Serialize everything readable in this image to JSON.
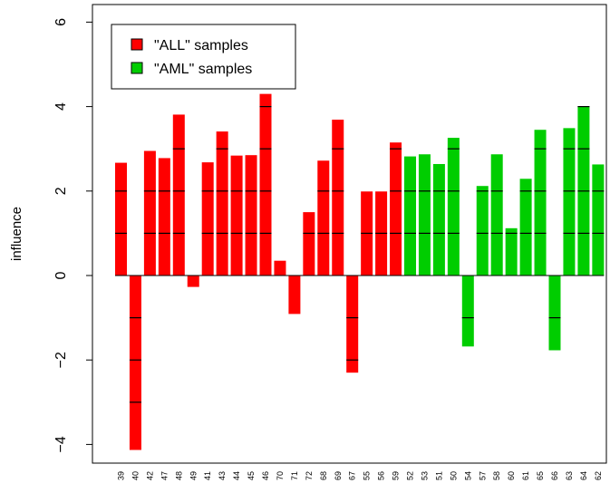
{
  "chart_data": {
    "type": "bar",
    "ylabel": "influence",
    "xlabel": "",
    "title": "",
    "ylim": [
      -4.3,
      6.3
    ],
    "yticks": [
      -4,
      -2,
      0,
      2,
      4,
      6
    ],
    "ytick_labels": [
      "−4",
      "−2",
      "0",
      "2",
      "4",
      "6"
    ],
    "categories": [
      "39",
      "40",
      "42",
      "47",
      "48",
      "49",
      "41",
      "43",
      "44",
      "45",
      "46",
      "70",
      "71",
      "72",
      "68",
      "69",
      "67",
      "55",
      "56",
      "59",
      "52",
      "53",
      "51",
      "50",
      "54",
      "57",
      "58",
      "60",
      "61",
      "65",
      "66",
      "63",
      "64",
      "62"
    ],
    "values": [
      2.67,
      -4.13,
      2.95,
      2.78,
      3.81,
      -0.27,
      2.68,
      3.41,
      2.84,
      2.85,
      4.3,
      0.35,
      -0.91,
      1.5,
      2.72,
      3.69,
      -2.3,
      1.99,
      1.99,
      3.15,
      2.82,
      2.87,
      2.64,
      3.26,
      -1.68,
      2.12,
      2.87,
      1.12,
      2.29,
      3.45,
      -1.77,
      3.49,
      4.01,
      2.63
    ],
    "groups": [
      "ALL",
      "ALL",
      "ALL",
      "ALL",
      "ALL",
      "ALL",
      "ALL",
      "ALL",
      "ALL",
      "ALL",
      "ALL",
      "ALL",
      "ALL",
      "ALL",
      "ALL",
      "ALL",
      "ALL",
      "ALL",
      "ALL",
      "ALL",
      "AML",
      "AML",
      "AML",
      "AML",
      "AML",
      "AML",
      "AML",
      "AML",
      "AML",
      "AML",
      "AML",
      "AML",
      "AML",
      "AML"
    ],
    "legend": {
      "position": "top-left",
      "entries": [
        {
          "label": "\"ALL\" samples",
          "color": "#ff0000",
          "group": "ALL"
        },
        {
          "label": "\"AML\" samples",
          "color": "#00cd00",
          "group": "AML"
        }
      ]
    },
    "segment_lines": [
      -3,
      -2,
      -1,
      1,
      2,
      3,
      4
    ],
    "grid": false
  }
}
